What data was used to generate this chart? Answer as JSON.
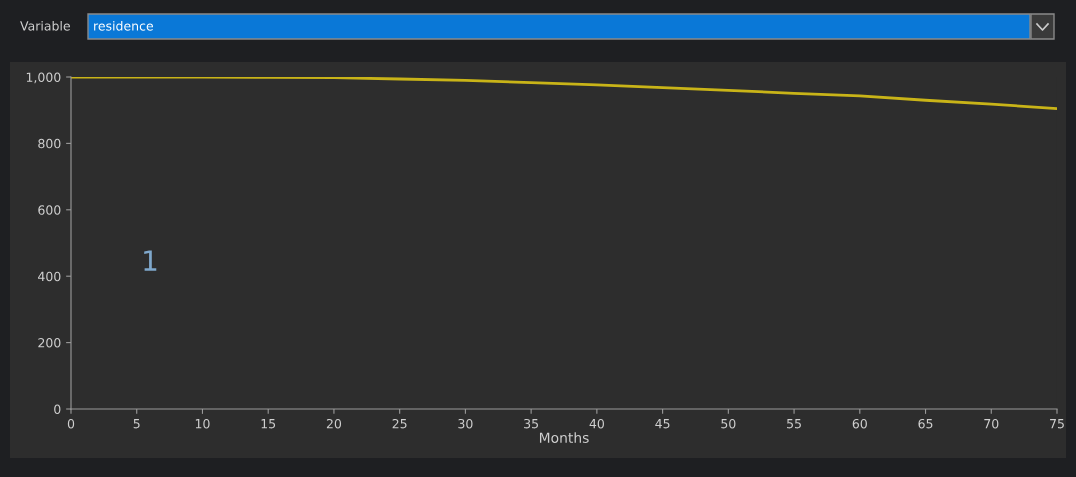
{
  "chart_data": {
    "type": "line",
    "xlabel": "Months",
    "annotations": [
      "Variable",
      "residence",
      "1"
    ],
    "x": [
      0,
      5,
      10,
      15,
      20,
      25,
      30,
      35,
      40,
      45,
      50,
      55,
      60,
      65,
      70,
      75
    ],
    "series": [
      {
        "color": "#c9b418",
        "values": [
          1000,
          1000,
          1000,
          999,
          998,
          994,
          990,
          983,
          976,
          968,
          960,
          951,
          943,
          930,
          918,
          905
        ]
      }
    ],
    "xlim": [
      0,
      75
    ],
    "xticks": [
      0,
      5,
      10,
      15,
      20,
      25,
      30,
      35,
      40,
      45,
      50,
      55,
      60,
      65,
      70,
      75
    ],
    "ylim": [
      0,
      1000
    ],
    "yticks": [
      0,
      200,
      400,
      600,
      800,
      {
        "value": 1000,
        "label": "1,000"
      }
    ],
    "grid": false,
    "marker": "none",
    "line_style": "solid"
  }
}
